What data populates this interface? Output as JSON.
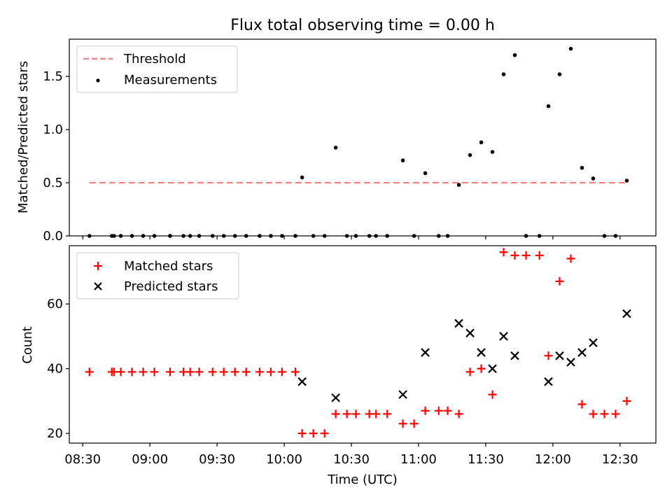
{
  "figure": {
    "title": "Flux total observing time = 0.00 h",
    "xlabel": "Time (UTC)"
  },
  "chart_data": [
    {
      "type": "scatter",
      "panel": "top",
      "ylabel": "Matched/Predicted stars",
      "ylim": [
        0,
        1.85
      ],
      "yticks": [
        0.0,
        0.5,
        1.0,
        1.5
      ],
      "yticklabels": [
        "0.0",
        "0.5",
        "1.0",
        "1.5"
      ],
      "legend": {
        "placement": "top-left",
        "entries": [
          "Threshold",
          "Measurements"
        ]
      },
      "threshold": {
        "name": "Threshold",
        "value": 0.5,
        "x_start": "08:33",
        "x_end": "12:33",
        "color": "#f08080",
        "style": "dashed"
      },
      "series": [
        {
          "name": "Measurements",
          "color": "#000000",
          "marker": "dot",
          "x": [
            "08:33",
            "08:43",
            "08:44",
            "08:47",
            "08:52",
            "08:57",
            "09:02",
            "09:09",
            "09:15",
            "09:18",
            "09:22",
            "09:28",
            "09:33",
            "09:38",
            "09:43",
            "09:49",
            "09:54",
            "09:59",
            "10:05",
            "10:08",
            "10:13",
            "10:18",
            "10:23",
            "10:28",
            "10:32",
            "10:38",
            "10:41",
            "10:46",
            "10:53",
            "10:58",
            "11:03",
            "11:09",
            "11:13",
            "11:18",
            "11:23",
            "11:28",
            "11:33",
            "11:38",
            "11:43",
            "11:48",
            "11:54",
            "11:58",
            "12:03",
            "12:08",
            "12:13",
            "12:18",
            "12:23",
            "12:28",
            "12:33"
          ],
          "y": [
            0,
            0,
            0,
            0,
            0,
            0,
            0,
            0,
            0,
            0,
            0,
            0,
            0,
            0,
            0,
            0,
            0,
            0,
            0,
            0.55,
            0,
            0,
            0.83,
            0,
            0,
            0,
            0,
            0,
            0.71,
            0,
            0.59,
            0,
            0,
            0.48,
            0.76,
            0.88,
            0.79,
            1.52,
            1.7,
            0,
            0,
            1.22,
            1.52,
            1.76,
            0.64,
            0.54,
            0,
            0,
            0.52
          ]
        }
      ]
    },
    {
      "type": "scatter",
      "panel": "bottom",
      "ylabel": "Count",
      "xlabel": "Time (UTC)",
      "xlim": [
        "08:24",
        "12:46"
      ],
      "ylim": [
        17,
        78
      ],
      "yticks": [
        20,
        40,
        60
      ],
      "yticklabels": [
        "20",
        "40",
        "60"
      ],
      "xticks": [
        "08:30",
        "09:00",
        "09:30",
        "10:00",
        "10:30",
        "11:00",
        "11:30",
        "12:00",
        "12:30"
      ],
      "legend": {
        "placement": "top-left",
        "entries": [
          "Matched stars",
          "Predicted stars"
        ]
      },
      "series": [
        {
          "name": "Matched stars",
          "color": "#ff0000",
          "marker": "plus",
          "x": [
            "08:33",
            "08:43",
            "08:44",
            "08:47",
            "08:52",
            "08:57",
            "09:02",
            "09:09",
            "09:15",
            "09:18",
            "09:22",
            "09:28",
            "09:33",
            "09:38",
            "09:43",
            "09:49",
            "09:54",
            "09:59",
            "10:05",
            "10:08",
            "10:13",
            "10:18",
            "10:23",
            "10:28",
            "10:32",
            "10:38",
            "10:41",
            "10:46",
            "10:53",
            "10:58",
            "11:03",
            "11:09",
            "11:13",
            "11:18",
            "11:23",
            "11:28",
            "11:33",
            "11:38",
            "11:43",
            "11:48",
            "11:54",
            "11:58",
            "12:03",
            "12:08",
            "12:13",
            "12:18",
            "12:23",
            "12:28",
            "12:33"
          ],
          "y": [
            39,
            39,
            39,
            39,
            39,
            39,
            39,
            39,
            39,
            39,
            39,
            39,
            39,
            39,
            39,
            39,
            39,
            39,
            39,
            20,
            20,
            20,
            26,
            26,
            26,
            26,
            26,
            26,
            23,
            23,
            27,
            27,
            27,
            26,
            39,
            40,
            32,
            76,
            75,
            75,
            75,
            44,
            67,
            74,
            29,
            26,
            26,
            26,
            30
          ]
        },
        {
          "name": "Predicted stars",
          "color": "#000000",
          "marker": "x",
          "x": [
            "10:08",
            "10:23",
            "10:53",
            "11:03",
            "11:18",
            "11:23",
            "11:28",
            "11:33",
            "11:38",
            "11:43",
            "11:58",
            "12:03",
            "12:08",
            "12:13",
            "12:18",
            "12:33"
          ],
          "y": [
            36,
            31,
            32,
            45,
            54,
            51,
            45,
            40,
            50,
            44,
            36,
            44,
            42,
            45,
            48,
            57
          ]
        }
      ]
    }
  ]
}
